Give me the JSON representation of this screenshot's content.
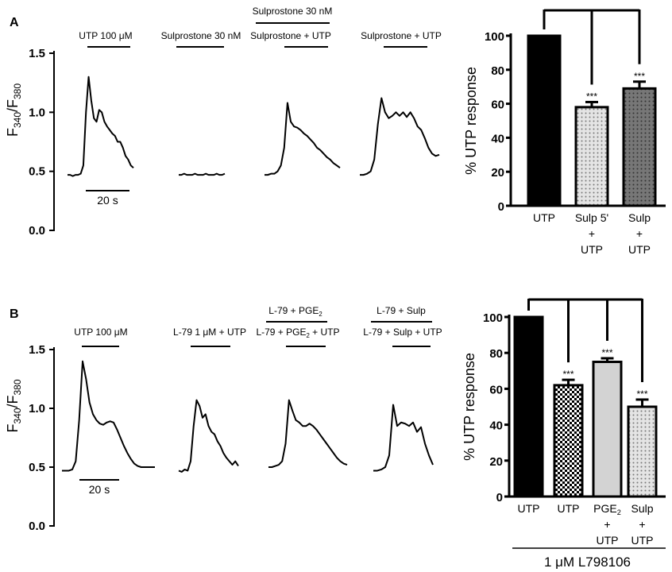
{
  "panels": {
    "a": "A",
    "b": "B"
  },
  "trace_ylabel": {
    "main": "F",
    "sub1": "340",
    "slash": "/F",
    "sub2": "380"
  },
  "scale_bar": "20 s",
  "chart_data": [
    {
      "type": "line",
      "panel": "A",
      "ylabel": "F340/F380",
      "ylim": [
        0,
        1.5
      ],
      "yticks": [
        "0.0",
        "0.5",
        "1.0",
        "1.5"
      ],
      "series": [
        {
          "label": "UTP 100 μM",
          "values": [
            0.47,
            0.47,
            0.46,
            0.47,
            0.47,
            0.48,
            0.55,
            1.0,
            1.3,
            1.1,
            0.95,
            0.92,
            1.02,
            1.0,
            0.92,
            0.88,
            0.85,
            0.82,
            0.8,
            0.75,
            0.75,
            0.7,
            0.63,
            0.6,
            0.55,
            0.53
          ]
        },
        {
          "label": "Sulprostone 30 nM",
          "values": [
            0.47,
            0.47,
            0.48,
            0.47,
            0.47,
            0.47,
            0.48,
            0.47,
            0.47,
            0.47,
            0.48,
            0.47,
            0.47,
            0.47,
            0.48,
            0.47,
            0.47,
            0.48
          ]
        },
        {
          "pre_label": "Sulprostone 30 nM",
          "label": "Sulprostone + UTP",
          "values": [
            0.47,
            0.47,
            0.48,
            0.48,
            0.5,
            0.55,
            0.7,
            1.08,
            0.92,
            0.88,
            0.87,
            0.85,
            0.82,
            0.8,
            0.77,
            0.74,
            0.7,
            0.68,
            0.65,
            0.62,
            0.6,
            0.57,
            0.55,
            0.53
          ]
        },
        {
          "label": "Sulprostone + UTP",
          "values": [
            0.47,
            0.47,
            0.48,
            0.5,
            0.6,
            0.9,
            1.12,
            1.0,
            0.95,
            0.97,
            1.0,
            0.97,
            1.0,
            0.96,
            1.0,
            0.95,
            0.88,
            0.85,
            0.78,
            0.7,
            0.65,
            0.63,
            0.64
          ]
        }
      ]
    },
    {
      "type": "bar",
      "panel": "A",
      "ylabel": "% UTP response",
      "ylim": [
        0,
        100
      ],
      "yticks": [
        "0",
        "20",
        "40",
        "60",
        "80",
        "100"
      ],
      "categories": [
        [
          "UTP"
        ],
        [
          "Sulp 5'",
          "+",
          "UTP"
        ],
        [
          "Sulp",
          "+",
          "UTP"
        ]
      ],
      "values": [
        100,
        58,
        69
      ],
      "errors": [
        0,
        3,
        4
      ],
      "significance": [
        "",
        "***",
        "***"
      ],
      "fills": [
        "solid-black",
        "light-dotted",
        "dark-dotted"
      ]
    },
    {
      "type": "line",
      "panel": "B",
      "ylabel": "F340/F380",
      "ylim": [
        0,
        1.5
      ],
      "yticks": [
        "0.0",
        "0.5",
        "1.0",
        "1.5"
      ],
      "series": [
        {
          "label": "UTP 100 μM",
          "values": [
            0.47,
            0.47,
            0.47,
            0.48,
            0.55,
            0.9,
            1.4,
            1.25,
            1.05,
            0.95,
            0.9,
            0.87,
            0.86,
            0.88,
            0.89,
            0.88,
            0.82,
            0.75,
            0.68,
            0.62,
            0.57,
            0.53,
            0.51,
            0.5,
            0.5,
            0.5,
            0.5,
            0.5
          ]
        },
        {
          "label": "L-79 1 μM + UTP",
          "values": [
            0.47,
            0.46,
            0.48,
            0.47,
            0.55,
            0.85,
            1.07,
            1.02,
            0.92,
            0.95,
            0.85,
            0.8,
            0.78,
            0.72,
            0.68,
            0.62,
            0.58,
            0.55,
            0.52,
            0.55,
            0.51
          ]
        },
        {
          "pre_label": {
            "text": "L-79 + PGE",
            "sub": "2"
          },
          "label": {
            "text": "L-79 + PGE",
            "sub": "2",
            "tail": " + UTP"
          },
          "values": [
            0.5,
            0.5,
            0.51,
            0.52,
            0.55,
            0.7,
            1.07,
            0.98,
            0.9,
            0.88,
            0.85,
            0.85,
            0.87,
            0.85,
            0.82,
            0.78,
            0.74,
            0.7,
            0.66,
            0.62,
            0.58,
            0.55,
            0.53,
            0.52
          ]
        },
        {
          "pre_label": "L-79 + Sulp",
          "label": "L-79 + Sulp + UTP",
          "values": [
            0.47,
            0.47,
            0.48,
            0.5,
            0.6,
            1.03,
            0.85,
            0.88,
            0.87,
            0.85,
            0.88,
            0.8,
            0.84,
            0.7,
            0.6,
            0.52
          ]
        }
      ]
    },
    {
      "type": "bar",
      "panel": "B",
      "ylabel": "% UTP response",
      "ylim": [
        0,
        100
      ],
      "yticks": [
        "0",
        "20",
        "40",
        "60",
        "80",
        "100"
      ],
      "categories": [
        [
          "UTP"
        ],
        [
          "UTP"
        ],
        [
          {
            "text": "PGE",
            "sub": "2"
          },
          "+",
          "UTP"
        ],
        [
          "Sulp",
          "+",
          "UTP"
        ]
      ],
      "values": [
        100,
        62,
        75,
        50
      ],
      "errors": [
        0,
        3,
        2,
        4
      ],
      "significance": [
        "",
        "***",
        "***",
        "***"
      ],
      "fills": [
        "solid-black",
        "checkerboard",
        "light-gray",
        "light-dotted"
      ],
      "group_label": "1 μM L798106"
    }
  ]
}
